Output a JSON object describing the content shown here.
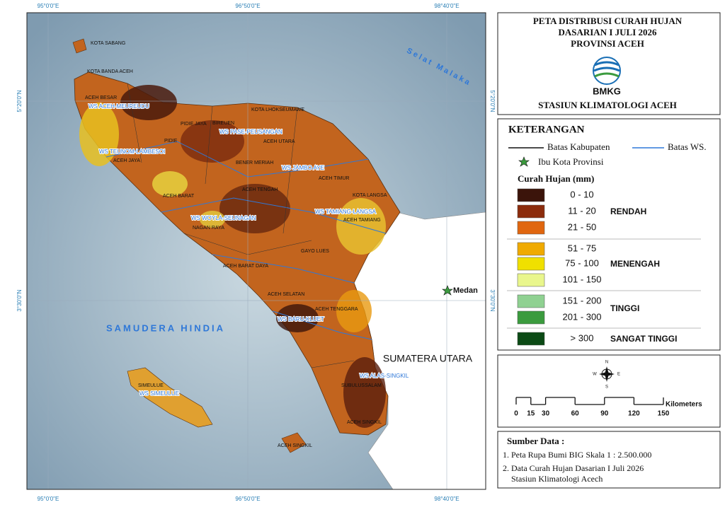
{
  "map": {
    "coords": {
      "top": [
        "95°0'0\"E",
        "96°50'0\"E",
        "98°40'0\"E"
      ],
      "left": [
        "5°20'0\"N",
        "3°30'0\"N"
      ]
    },
    "labels": [
      "KOTA SABANG",
      "KOTA BANDA ACEH",
      "ACEH BESAR",
      "WS ACEH-MEUREUDU",
      "PIDIE JAYA",
      "BIREUEN",
      "KOTA LHOKSEUMAWE",
      "WS PASE-PEUSANGAN",
      "PIDIE",
      "ACEH UTARA",
      "WS TEUNOM-LAMBESOI",
      "ACEH JAYA",
      "BENER MERIAH",
      "WS JAMBO AYE",
      "ACEH TIMUR",
      "ACEH BARAT",
      "ACEH TENGAH",
      "KOTA LANGSA",
      "WS TAMIANG-LANGSA",
      "ACEH TAMIANG",
      "WS WOYLA-SEUNAGAN",
      "NAGAN RAYA",
      "GAYO LUES",
      "ACEH BARAT DAYA",
      "ACEH SELATAN",
      "ACEH TENGGARA",
      "WS BARU-KLUET",
      "WS ALAS-SINGKIL",
      "SUBULUSSALAM",
      "ACEH SINGKIL",
      "SIMEULUE",
      "WS SIMEULUE",
      "ACEH SINGKIL"
    ],
    "sea": [
      "SAMUDERA HINDIA",
      "Selat Malaka"
    ],
    "region": "SUMATERA UTARA",
    "city": "Medan"
  },
  "title": {
    "lines": [
      "PETA DISTRIBUSI CURAH HUJAN",
      "DASARIAN I JULI 2026",
      "PROVINSI ACEH"
    ],
    "logo": "BMKG",
    "station": "STASIUN KLIMATOLOGI ACEH"
  },
  "legend": {
    "title": "KETERANGAN",
    "kabupaten": "Batas Kabupaten",
    "ws": "Batas WS.",
    "capital": "Ibu Kota Provinsi",
    "rain_title": "Curah Hujan (mm)",
    "classes": [
      {
        "range": "0 - 10",
        "color": "#3b140a"
      },
      {
        "range": "11 - 20",
        "color": "#8c2c0c"
      },
      {
        "range": "21 - 50",
        "color": "#e0660f"
      },
      {
        "range": "51 - 75",
        "color": "#f0aa00"
      },
      {
        "range": "75 - 100",
        "color": "#f0e000"
      },
      {
        "range": "101 - 150",
        "color": "#e9f68c"
      },
      {
        "range": "151 - 200",
        "color": "#8fd191"
      },
      {
        "range": "201 - 300",
        "color": "#3b9b3e"
      },
      {
        "range": "> 300",
        "color": "#0b4a15"
      }
    ],
    "groups": [
      "RENDAH",
      "MENENGAH",
      "TINGGI",
      "SANGAT TINGGI"
    ]
  },
  "compass": [
    "N",
    "S",
    "E",
    "W"
  ],
  "scale": {
    "unit": "Kilometers",
    "ticks": [
      0,
      15,
      30,
      60,
      90,
      120,
      150
    ]
  },
  "source": {
    "title": "Sumber Data :",
    "items": [
      "1. Peta Rupa Bumi BIG Skala 1 : 2.500.000",
      "2. Data Curah Hujan Dasarian I Juli 2026",
      "Stasiun Klimatologi Acech"
    ]
  }
}
